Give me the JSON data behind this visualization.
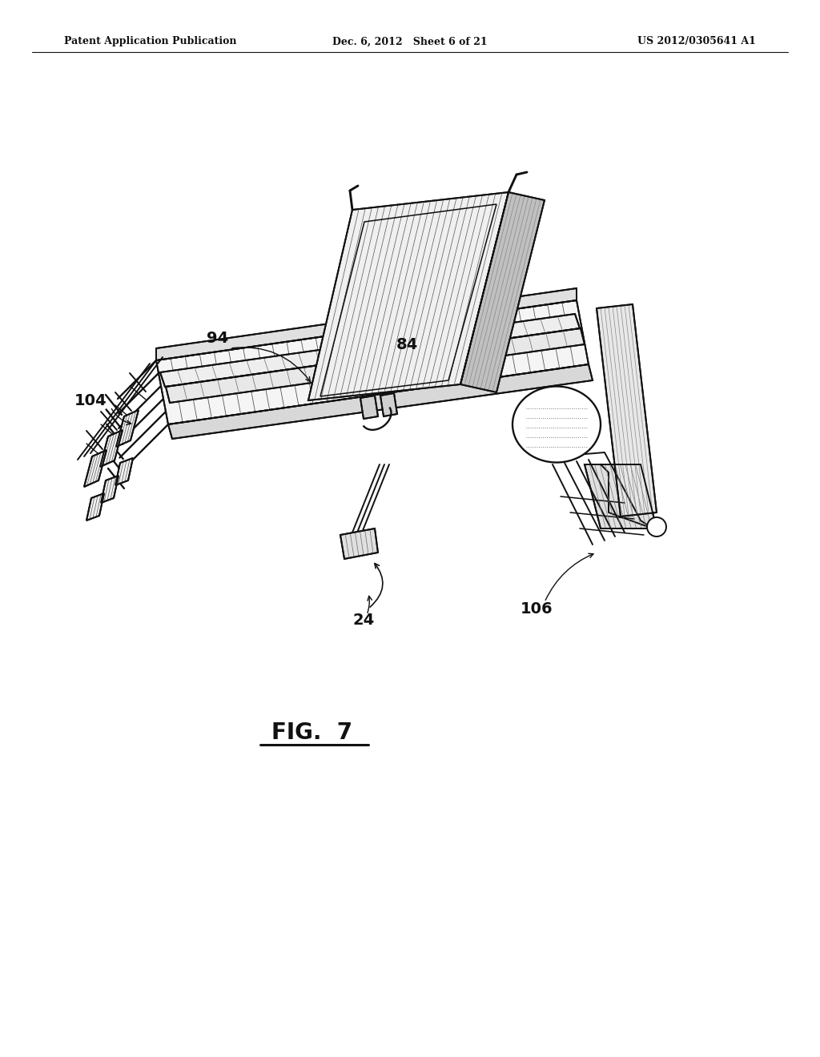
{
  "bg_color": "#ffffff",
  "header_left": "Patent Application Publication",
  "header_mid": "Dec. 6, 2012   Sheet 6 of 21",
  "header_right": "US 2012/0305641 A1",
  "fig_label": "FIG.  7",
  "line_color": "#111111",
  "hatch_color": "#333333",
  "line_width": 1.4,
  "rotation_deg": -35
}
